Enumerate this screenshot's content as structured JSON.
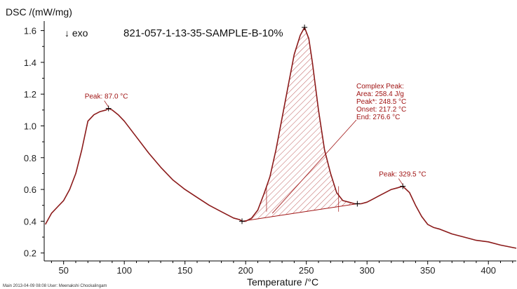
{
  "chart_data": {
    "type": "line",
    "title": "821-057-1-13-35-SAMPLE-B-10%",
    "ylabel": "DSC /(mW/mg)",
    "xlabel": "Temperature /°C",
    "direction_label": "↓ exo",
    "xlim": [
      34,
      423
    ],
    "ylim": [
      0.15,
      1.66
    ],
    "xticks": [
      50,
      100,
      150,
      200,
      250,
      300,
      350,
      400
    ],
    "yticks": [
      0.2,
      0.4,
      0.6,
      0.8,
      1.0,
      1.2,
      1.4,
      1.6
    ],
    "ytick_labels": [
      "0.2",
      "0.4",
      "0.6",
      "0.8",
      "1.0",
      "1.2",
      "1.4",
      "1.6"
    ],
    "grid": false,
    "series": [
      {
        "x": [
          35,
          40,
          45,
          50,
          55,
          60,
          65,
          70,
          75,
          80,
          85,
          87,
          90,
          95,
          100,
          110,
          120,
          130,
          140,
          150,
          160,
          170,
          180,
          190,
          195,
          197,
          200,
          205,
          210,
          215,
          220,
          225,
          230,
          235,
          240,
          245,
          248.5,
          252,
          255,
          260,
          265,
          270,
          275,
          280,
          285,
          290,
          295,
          300,
          305,
          310,
          315,
          320,
          325,
          329.5,
          335,
          340,
          345,
          350,
          355,
          360,
          370,
          380,
          390,
          400,
          410,
          423
        ],
        "y": [
          0.38,
          0.45,
          0.49,
          0.53,
          0.6,
          0.7,
          0.85,
          1.03,
          1.07,
          1.09,
          1.1,
          1.11,
          1.1,
          1.07,
          1.03,
          0.93,
          0.83,
          0.74,
          0.66,
          0.6,
          0.55,
          0.5,
          0.46,
          0.42,
          0.41,
          0.4,
          0.4,
          0.42,
          0.47,
          0.57,
          0.68,
          0.85,
          1.05,
          1.25,
          1.45,
          1.57,
          1.62,
          1.55,
          1.4,
          1.1,
          0.85,
          0.7,
          0.58,
          0.53,
          0.52,
          0.51,
          0.51,
          0.52,
          0.54,
          0.56,
          0.58,
          0.6,
          0.61,
          0.62,
          0.58,
          0.5,
          0.43,
          0.38,
          0.36,
          0.35,
          0.32,
          0.3,
          0.28,
          0.27,
          0.25,
          0.23
        ],
        "color": "#8b1a1a"
      }
    ],
    "annotations": [
      {
        "type": "peak",
        "label": "Peak: 87.0 °C",
        "x": 87.0,
        "y": 1.11
      },
      {
        "type": "peak",
        "label": "Peak: 329.5 °C",
        "x": 329.5,
        "y": 0.62
      },
      {
        "type": "complex_peak",
        "lines": [
          "Complex Peak:",
          "Area:   258.4 J/g",
          "Peak*:  248.5 °C",
          "Onset:  217.2 °C",
          "End:    276.6 °C"
        ],
        "baseline": [
          [
            197,
            0.4
          ],
          [
            292,
            0.51
          ]
        ],
        "peak": [
          248.5,
          1.62
        ],
        "onset_x": 217.2,
        "end_x": 276.6
      }
    ],
    "annotation_color": "#a01414"
  },
  "footer": {
    "text": "Main    2013-04-09 08:08    User: Meenakshi Chockalingam"
  }
}
